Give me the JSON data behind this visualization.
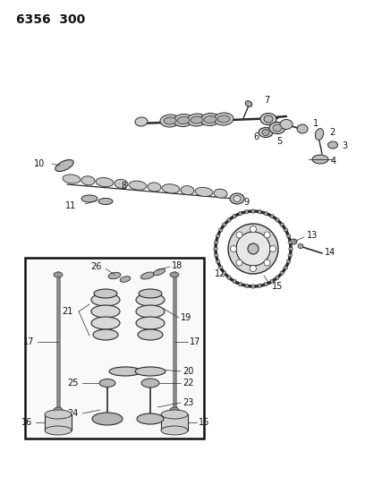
{
  "title": "6356  300",
  "bg_color": "#ffffff",
  "line_color": "#2a2a2a",
  "text_color": "#111111",
  "title_fontsize": 10,
  "label_fontsize": 7,
  "fig_width": 4.08,
  "fig_height": 5.33,
  "dpi": 100
}
